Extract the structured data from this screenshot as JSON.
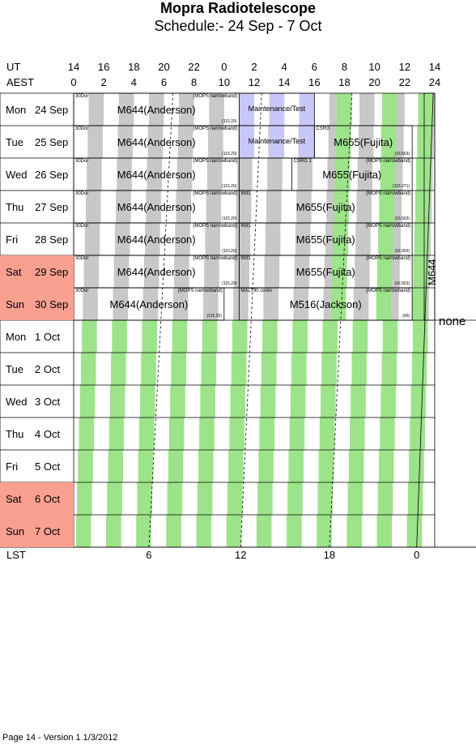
{
  "title": "Mopra Radiotelescope",
  "subtitle": "Schedule:- 24 Sep - 7 Oct",
  "axis": {
    "ut_label": "UT",
    "aest_label": "AEST",
    "lst_label": "LST",
    "ut_ticks": [
      "14",
      "16",
      "18",
      "20",
      "22",
      "0",
      "2",
      "4",
      "6",
      "8",
      "10",
      "12",
      "14"
    ],
    "aest_ticks": [
      "0",
      "2",
      "4",
      "6",
      "8",
      "10",
      "12",
      "14",
      "16",
      "18",
      "20",
      "22",
      "24"
    ],
    "lst_ticks": [
      "6",
      "12",
      "18",
      "0"
    ]
  },
  "days": [
    {
      "dow": "Mon",
      "date": "24 Sep",
      "weekend": false
    },
    {
      "dow": "Tue",
      "date": "25 Sep",
      "weekend": false
    },
    {
      "dow": "Wed",
      "date": "26 Sep",
      "weekend": false
    },
    {
      "dow": "Thu",
      "date": "27 Sep",
      "weekend": false
    },
    {
      "dow": "Fri",
      "date": "28 Sep",
      "weekend": false
    },
    {
      "dow": "Sat",
      "date": "29 Sep",
      "weekend": true
    },
    {
      "dow": "Sun",
      "date": "30 Sep",
      "weekend": true
    },
    {
      "dow": "Mon",
      "date": "1 Oct",
      "weekend": false
    },
    {
      "dow": "Tue",
      "date": "2 Oct",
      "weekend": false
    },
    {
      "dow": "Wed",
      "date": "3 Oct",
      "weekend": false
    },
    {
      "dow": "Thu",
      "date": "4 Oct",
      "weekend": false
    },
    {
      "dow": "Fri",
      "date": "5 Oct",
      "weekend": false
    },
    {
      "dow": "Sat",
      "date": "6 Oct",
      "weekend": true
    },
    {
      "dow": "Sun",
      "date": "7 Oct",
      "weekend": true
    }
  ],
  "blocks": [
    {
      "day": 0,
      "start": 0,
      "end": 11,
      "name": "M644(Anderson)",
      "tl": "30Dor",
      "tr": "(MOPS narrowband)",
      "br": "(115.20)"
    },
    {
      "day": 0,
      "start": 11,
      "end": 16,
      "name": "Maintenance/Test",
      "tl": "",
      "tr": "",
      "br": "",
      "maint": true
    },
    {
      "day": 1,
      "start": 0,
      "end": 11,
      "name": "M644(Anderson)",
      "tl": "30Dor",
      "tr": "(MOPS narrowband)",
      "br": "(115.20)"
    },
    {
      "day": 1,
      "start": 11,
      "end": 16,
      "name": "Maintenance/Test",
      "tl": "",
      "tr": "",
      "br": "",
      "maint": true
    },
    {
      "day": 1,
      "start": 16,
      "end": 22.5,
      "name": "M655(Fujita)",
      "tl": "CSRG",
      "tr": "",
      "br": "(16.563)"
    },
    {
      "day": 2,
      "start": 0,
      "end": 11,
      "name": "M644(Anderson)",
      "tl": "30Dor",
      "tr": "(MOPS narrowband)",
      "br": "(115.20)"
    },
    {
      "day": 2,
      "start": 14.5,
      "end": 22.5,
      "name": "M655(Fujita)",
      "tl": "CSRG 1",
      "tr": "(MOPS narrowband)",
      "br": "(115.271)"
    },
    {
      "day": 3,
      "start": 0,
      "end": 11,
      "name": "M644(Anderson)",
      "tl": "30Dor",
      "tr": "(MOPS narrowband)",
      "br": "(115.20)"
    },
    {
      "day": 3,
      "start": 11,
      "end": 22.5,
      "name": "M655(Fujita)",
      "tl": "Wd1",
      "tr": "(MOPS narrowband)",
      "br": "(16.563)"
    },
    {
      "day": 4,
      "start": 0,
      "end": 11,
      "name": "M644(Anderson)",
      "tl": "30Dor",
      "tr": "(MOPS narrowband)",
      "br": "(115.20)"
    },
    {
      "day": 4,
      "start": 11,
      "end": 22.5,
      "name": "M655(Fujita)",
      "tl": "Wd1",
      "tr": "(MOPS narrowband)",
      "br": "(16.563)"
    },
    {
      "day": 5,
      "start": 0,
      "end": 11,
      "name": "M644(Anderson)",
      "tl": "30Dor",
      "tr": "(MOPS narrowband)",
      "br": "(115.20)"
    },
    {
      "day": 5,
      "start": 11,
      "end": 22.5,
      "name": "M655(Fujita)",
      "tl": "Wd1",
      "tr": "(MOPS narrowband)",
      "br": "(16.563)"
    },
    {
      "day": 6,
      "start": 0,
      "end": 10,
      "name": "M644(Anderson)",
      "tl": "30Dor",
      "tr": "(MOPS narrowband)",
      "br": "(115.20)"
    },
    {
      "day": 6,
      "start": 11,
      "end": 22.5,
      "name": "M516(Jackson)",
      "tl": "MALT90 cores",
      "tr": "(MOPS narrowband)",
      "br": "(90)"
    }
  ],
  "vertical_block": {
    "label": "M644",
    "day_start": 0,
    "day_end": 6
  },
  "none_label": "none",
  "footer": "Page 14 - Version 1  1/3/2012"
}
